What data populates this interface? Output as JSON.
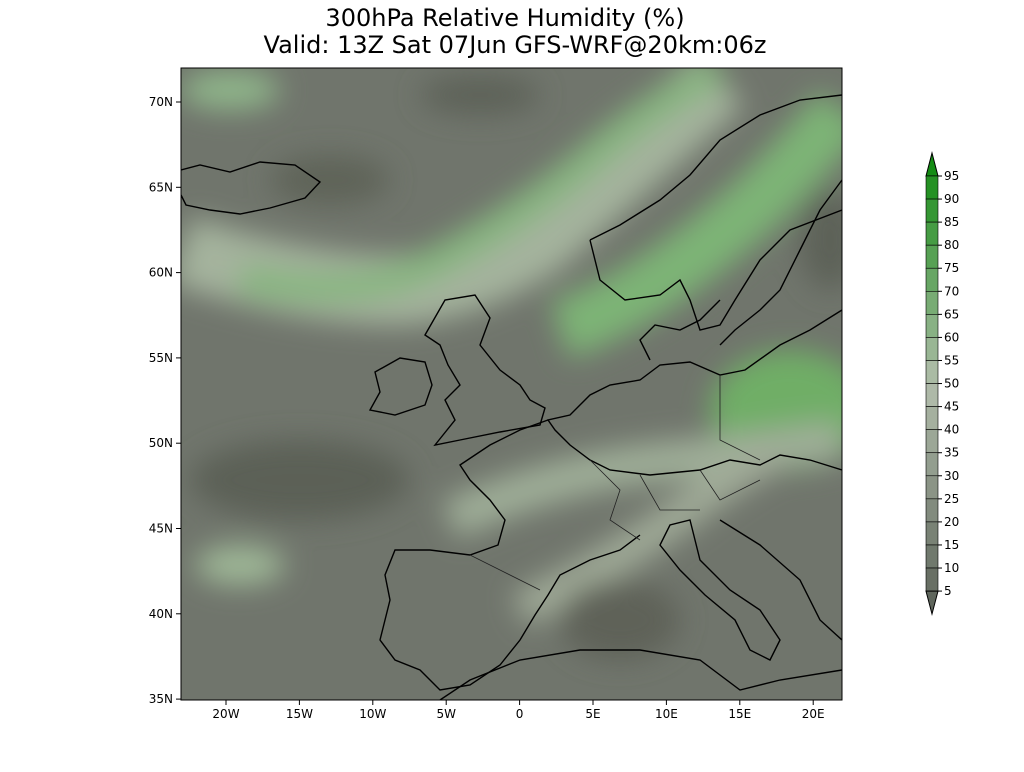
{
  "title": {
    "line1": "300hPa Relative Humidity (%)",
    "line2": "Valid: 13Z Sat 07Jun GFS-WRF@20km:06z"
  },
  "lat_labels": [
    "70N",
    "65N",
    "60N",
    "55N",
    "50N",
    "45N",
    "40N",
    "35N"
  ],
  "lon_labels": [
    "20W",
    "15W",
    "10W",
    "5W",
    "0",
    "5E",
    "10E",
    "15E",
    "20E"
  ],
  "colorbar": {
    "levels": [
      95,
      90,
      85,
      80,
      75,
      70,
      65,
      60,
      55,
      50,
      45,
      40,
      35,
      30,
      25,
      20,
      15,
      10,
      5
    ]
  }
}
